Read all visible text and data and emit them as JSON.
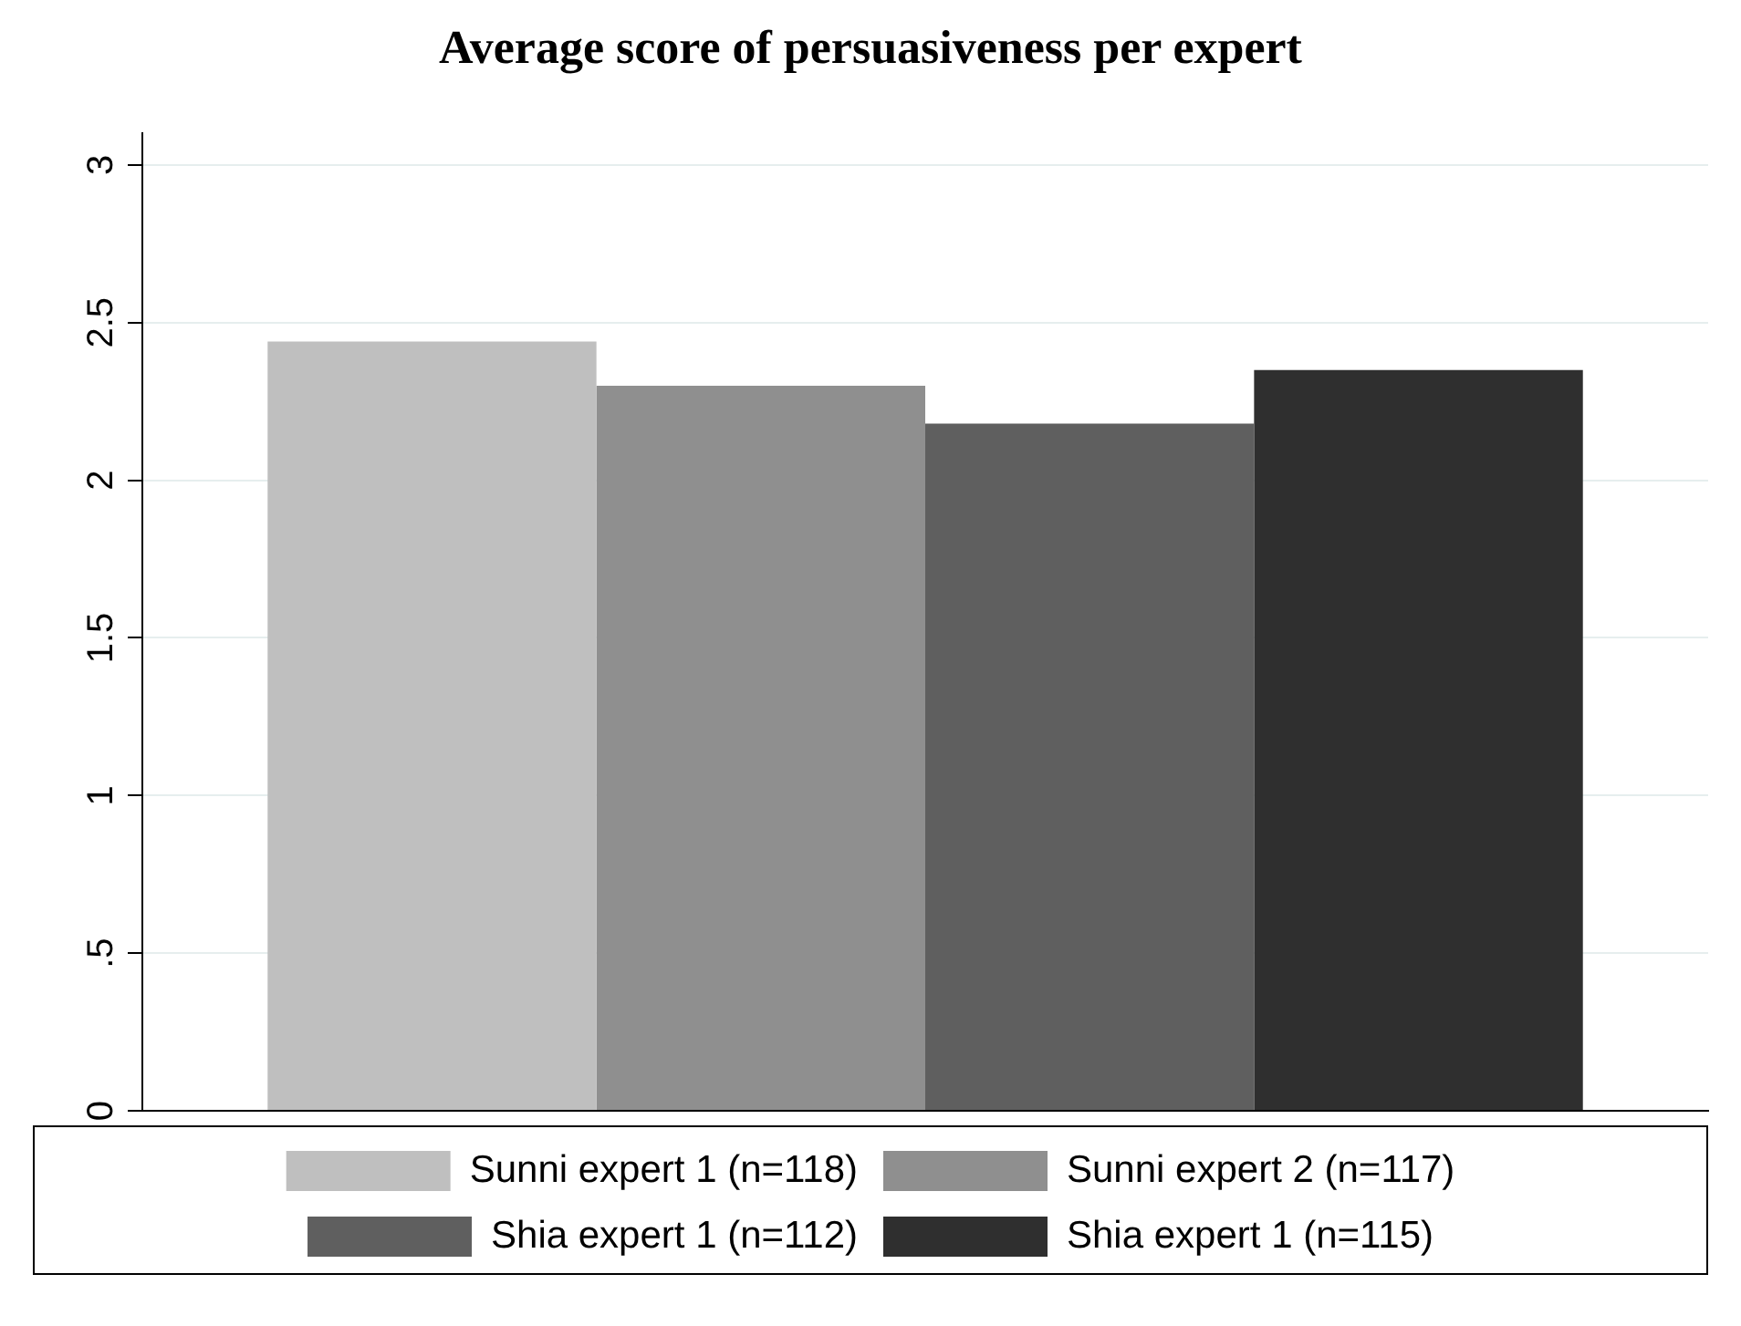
{
  "chart_data": {
    "type": "bar",
    "title": "Average score of persuasiveness per expert",
    "categories": [
      null
    ],
    "series": [
      {
        "name": "Sunni expert 1 (n=118)",
        "color": "#bfbfbf",
        "values": [
          2.44
        ]
      },
      {
        "name": "Sunni expert 2 (n=117)",
        "color": "#8f8f8f",
        "values": [
          2.3
        ]
      },
      {
        "name": "Shia expert 1 (n=112)",
        "color": "#5f5f5f",
        "values": [
          2.18
        ]
      },
      {
        "name": "Shia expert 1 (n=115)",
        "color": "#2f2f2f",
        "values": [
          2.35
        ]
      }
    ],
    "ylim": [
      0,
      3.1
    ],
    "yticks": [
      0,
      {
        "value": 0.5,
        "label": ".5"
      },
      1,
      1.5,
      2,
      2.5,
      3
    ],
    "grid": "y",
    "legend": "bottom"
  }
}
